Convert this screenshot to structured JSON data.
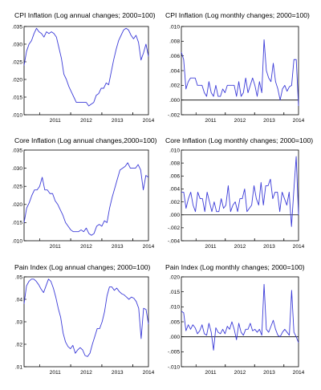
{
  "chart_data": [
    {
      "type": "line",
      "title": "CPI Inflation (Log annual changes; 2000=100)",
      "xlabel": "",
      "ylabel": "",
      "x_start": "2010-07",
      "x_end": "2014-07",
      "x_ticks": [
        "2011",
        "2012",
        "2013",
        "2014"
      ],
      "ylim": [
        0.01,
        0.035
      ],
      "y_ticks": [
        ".010",
        ".015",
        ".020",
        ".025",
        ".030",
        ".035"
      ],
      "zero_line": false,
      "series": [
        {
          "color": "#3b3bd8",
          "values": [
            0.024,
            0.028,
            0.03,
            0.031,
            0.033,
            0.0345,
            0.0335,
            0.033,
            0.032,
            0.0335,
            0.033,
            0.0335,
            0.033,
            0.032,
            0.029,
            0.026,
            0.0215,
            0.02,
            0.018,
            0.0165,
            0.015,
            0.0135,
            0.0135,
            0.0135,
            0.0135,
            0.0135,
            0.0125,
            0.013,
            0.0135,
            0.0155,
            0.016,
            0.0175,
            0.0175,
            0.019,
            0.0185,
            0.022,
            0.0255,
            0.0285,
            0.031,
            0.0325,
            0.034,
            0.0345,
            0.034,
            0.0325,
            0.0315,
            0.0325,
            0.0305,
            0.0255,
            0.0275,
            0.03,
            0.0265
          ]
        }
      ]
    },
    {
      "type": "line",
      "title": "CPI Inflation (Log monthly changes; 2000=100)",
      "xlabel": "",
      "ylabel": "",
      "x_start": "2010-07",
      "x_end": "2014-07",
      "x_ticks": [
        "2011",
        "2012",
        "2013",
        "2014"
      ],
      "ylim": [
        -0.002,
        0.01
      ],
      "y_ticks": [
        "-.002",
        ".000",
        ".002",
        ".004",
        ".006",
        ".008",
        ".010"
      ],
      "zero_line": true,
      "series": [
        {
          "color": "#3b3bd8",
          "values": [
            0.0065,
            0.0055,
            0.0015,
            0.0025,
            0.003,
            0.003,
            0.003,
            0.002,
            0.002,
            0.002,
            0.001,
            0.0005,
            0.0025,
            0.001,
            0.0005,
            0.002,
            0.0005,
            0.0005,
            0.0015,
            0.001,
            0.002,
            0.002,
            0.002,
            0.002,
            0.0005,
            0.0025,
            0.0005,
            0.001,
            0.003,
            0.001,
            0.002,
            0.003,
            0.002,
            0.0005,
            0.0025,
            0.001,
            0.0082,
            0.004,
            0.003,
            0.0025,
            0.005,
            0.0025,
            0.0015,
            0.0,
            0.0015,
            0.002,
            0.0012,
            0.0018,
            0.002,
            0.0055,
            0.0055,
            -0.0008
          ]
        }
      ]
    },
    {
      "type": "line",
      "title": "Core Inflation (Log annual changes,2000=100)",
      "xlabel": "",
      "ylabel": "",
      "x_start": "2010-07",
      "x_end": "2014-07",
      "x_ticks": [
        "2011",
        "2012",
        "2013",
        "2014"
      ],
      "ylim": [
        0.01,
        0.035
      ],
      "y_ticks": [
        ".010",
        ".015",
        ".020",
        ".025",
        ".030",
        ".035"
      ],
      "zero_line": false,
      "series": [
        {
          "color": "#3b3bd8",
          "values": [
            0.015,
            0.019,
            0.0205,
            0.0225,
            0.024,
            0.024,
            0.025,
            0.0275,
            0.024,
            0.024,
            0.023,
            0.023,
            0.021,
            0.02,
            0.0185,
            0.017,
            0.015,
            0.014,
            0.013,
            0.0125,
            0.0125,
            0.0125,
            0.013,
            0.0125,
            0.0135,
            0.012,
            0.0115,
            0.012,
            0.014,
            0.0145,
            0.014,
            0.0155,
            0.015,
            0.019,
            0.022,
            0.0245,
            0.027,
            0.0295,
            0.03,
            0.0305,
            0.0315,
            0.03,
            0.03,
            0.03,
            0.031,
            0.0295,
            0.024,
            0.028,
            0.0275
          ]
        }
      ]
    },
    {
      "type": "line",
      "title": "Core Inflation (Log monthly changes; 2000=100)",
      "xlabel": "",
      "ylabel": "",
      "x_start": "2010-07",
      "x_end": "2014-07",
      "x_ticks": [
        "2011",
        "2012",
        "2013",
        "2014"
      ],
      "ylim": [
        -0.004,
        0.01
      ],
      "y_ticks": [
        "-.004",
        "-.002",
        ".000",
        ".002",
        ".004",
        ".006",
        ".008",
        ".010"
      ],
      "zero_line": true,
      "series": [
        {
          "color": "#3b3bd8",
          "values": [
            0.0035,
            0.0035,
            0.001,
            0.0025,
            0.0035,
            0.0015,
            0.0005,
            0.0035,
            0.0025,
            0.0025,
            0.0005,
            0.0035,
            0.002,
            0.0005,
            0.002,
            0.0005,
            0.0005,
            0.0025,
            0.001,
            0.0015,
            0.0045,
            0.0005,
            0.0015,
            0.002,
            0.0005,
            0.0025,
            0.0025,
            0.004,
            0.0005,
            0.001,
            0.0015,
            0.0045,
            0.0025,
            0.0015,
            0.005,
            0.0015,
            0.0045,
            0.0045,
            0.0055,
            0.0025,
            0.0035,
            0.0035,
            0.0005,
            0.0035,
            0.0025,
            0.0015,
            0.0035,
            -0.0018,
            0.0038,
            0.009,
            0.0
          ]
        }
      ]
    },
    {
      "type": "line",
      "title": "Pain Index (Log annual changes; 2000=100)",
      "xlabel": "",
      "ylabel": "",
      "x_start": "2010-07",
      "x_end": "2014-07",
      "x_ticks": [
        "2011",
        "2012",
        "2013",
        "2014"
      ],
      "ylim": [
        0.01,
        0.05
      ],
      "y_ticks": [
        ".01",
        ".02",
        ".03",
        ".04",
        ".05"
      ],
      "zero_line": false,
      "series": [
        {
          "color": "#3b3bd8",
          "values": [
            0.038,
            0.046,
            0.048,
            0.049,
            0.049,
            0.048,
            0.0465,
            0.0445,
            0.043,
            0.046,
            0.049,
            0.048,
            0.045,
            0.041,
            0.036,
            0.032,
            0.025,
            0.021,
            0.019,
            0.018,
            0.0195,
            0.016,
            0.0175,
            0.0185,
            0.0175,
            0.015,
            0.0145,
            0.016,
            0.02,
            0.0235,
            0.027,
            0.027,
            0.03,
            0.0345,
            0.0415,
            0.0455,
            0.0455,
            0.044,
            0.045,
            0.0435,
            0.0425,
            0.042,
            0.041,
            0.04,
            0.041,
            0.0405,
            0.039,
            0.036,
            0.0225,
            0.036,
            0.0355,
            0.029
          ]
        }
      ]
    },
    {
      "type": "line",
      "title": "Pain Index (Log monthly changes; 2000=100)",
      "xlabel": "",
      "ylabel": "",
      "x_start": "2010-07",
      "x_end": "2014-07",
      "x_ticks": [
        "2011",
        "2012",
        "2013",
        "2014"
      ],
      "ylim": [
        -0.01,
        0.02
      ],
      "y_ticks": [
        "-.010",
        "-.005",
        ".000",
        ".005",
        ".010",
        ".015",
        ".020"
      ],
      "zero_line": true,
      "series": [
        {
          "color": "#3b3bd8",
          "values": [
            0.0085,
            0.008,
            0.002,
            0.004,
            0.0025,
            0.004,
            0.003,
            0.001,
            0.002,
            0.004,
            0.001,
            0.0005,
            0.0045,
            0.0015,
            -0.0045,
            0.003,
            0.0015,
            0.001,
            0.0025,
            0.001,
            0.0035,
            0.0025,
            0.005,
            0.0025,
            -0.001,
            0.0045,
            0.0015,
            0.0005,
            0.0025,
            0.0025,
            0.0045,
            0.002,
            0.0025,
            0.0015,
            0.0025,
            0.0005,
            0.0175,
            0.0025,
            0.0015,
            0.0035,
            0.0055,
            0.0025,
            0.0005,
            0.0,
            0.0015,
            0.0025,
            0.0015,
            0.0005,
            0.0155,
            0.0015,
            0.0,
            -0.002
          ]
        }
      ]
    }
  ]
}
